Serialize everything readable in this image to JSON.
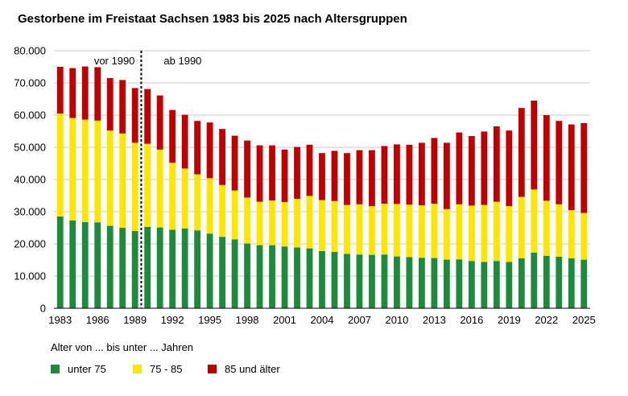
{
  "chart_data": {
    "type": "bar",
    "stacked": true,
    "title": "Gestorbene im Freistaat Sachsen 1983 bis 2025 nach Altersgruppen",
    "xlabel": "",
    "ylabel": "",
    "ylim": [
      0,
      80000
    ],
    "yticks": [
      "0",
      "10.000",
      "20.000",
      "30.000",
      "40.000",
      "50.000",
      "60.000",
      "70.000",
      "80.000"
    ],
    "xtick_labels": [
      "1983",
      "1986",
      "1989",
      "1992",
      "1995",
      "1998",
      "2001",
      "2004",
      "2007",
      "2010",
      "2013",
      "2016",
      "2019",
      "2022",
      "2025"
    ],
    "grid": "horizontal",
    "legend_title": "Alter von ... bis unter ... Jahren",
    "legend_position": "bottom",
    "categories": [
      "1983",
      "1984",
      "1985",
      "1986",
      "1987",
      "1988",
      "1989",
      "1990",
      "1991",
      "1992",
      "1993",
      "1994",
      "1995",
      "1996",
      "1997",
      "1998",
      "1999",
      "2000",
      "2001",
      "2002",
      "2003",
      "2004",
      "2005",
      "2006",
      "2007",
      "2008",
      "2009",
      "2010",
      "2011",
      "2012",
      "2013",
      "2014",
      "2015",
      "2016",
      "2017",
      "2018",
      "2019",
      "2020",
      "2021",
      "2022",
      "2023",
      "2024",
      "2025"
    ],
    "series": [
      {
        "name": "unter 75",
        "color": "#1e8a3c",
        "values": [
          28500,
          27300,
          26800,
          26700,
          25600,
          25000,
          24000,
          25300,
          25100,
          24400,
          24800,
          24200,
          23200,
          22200,
          21400,
          20100,
          19600,
          19600,
          19200,
          18900,
          18600,
          17800,
          17500,
          16900,
          16700,
          16600,
          16700,
          16100,
          15900,
          15700,
          15600,
          15100,
          15200,
          14700,
          14400,
          14700,
          14400,
          15500,
          17300,
          16300,
          16000,
          15500,
          15100
        ]
      },
      {
        "name": "75 - 85",
        "color": "#ffe600",
        "values": [
          32000,
          31800,
          31800,
          31600,
          29600,
          29300,
          27400,
          25800,
          24200,
          20800,
          18600,
          17400,
          17200,
          16100,
          15200,
          14300,
          13500,
          13900,
          13800,
          15100,
          16300,
          15800,
          15800,
          15200,
          15600,
          15100,
          15800,
          16300,
          16300,
          16300,
          16900,
          15700,
          17100,
          17200,
          17700,
          18400,
          17300,
          19100,
          19600,
          17100,
          16300,
          15000,
          14500
        ]
      },
      {
        "name": "85 und älter",
        "color": "#c00000",
        "values": [
          14500,
          15500,
          16500,
          16600,
          16300,
          16600,
          17000,
          17000,
          16800,
          16400,
          16700,
          16600,
          17300,
          17400,
          17000,
          17700,
          17500,
          17100,
          16300,
          16100,
          15900,
          14600,
          15600,
          16100,
          16800,
          17400,
          17900,
          18500,
          18600,
          19400,
          20400,
          20600,
          22300,
          21600,
          22800,
          23400,
          23500,
          27600,
          27600,
          26600,
          25900,
          26600,
          27900
        ]
      }
    ],
    "annotations": [
      {
        "text": "vor 1990"
      },
      {
        "text": "ab 1990"
      }
    ],
    "divider_after_category": "1989"
  }
}
